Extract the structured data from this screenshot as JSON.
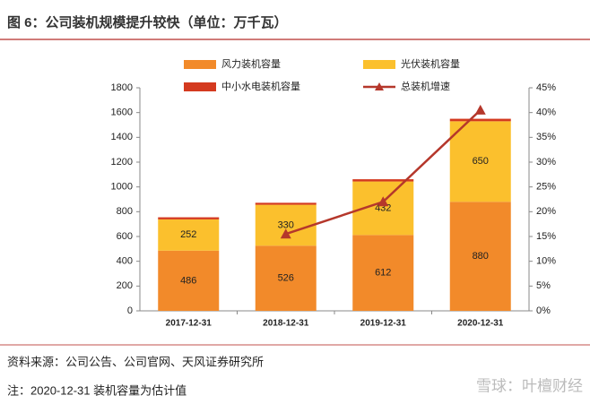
{
  "chart_data": {
    "type": "bar",
    "stacked": true,
    "title": "图 6：公司装机规模提升较快（单位：万千瓦）",
    "categories": [
      "2017-12-31",
      "2018-12-31",
      "2019-12-31",
      "2020-12-31"
    ],
    "series": [
      {
        "name": "风力装机容量",
        "color": "#f28a2a",
        "values": [
          486,
          526,
          612,
          880
        ]
      },
      {
        "name": "光伏装机容量",
        "color": "#fbc02d",
        "values": [
          252,
          330,
          432,
          650
        ]
      },
      {
        "name": "中小水电装机容量",
        "color": "#d43a1f",
        "values": [
          17,
          16,
          18,
          20
        ]
      },
      {
        "name": "总装机增速",
        "color": "#b5372b",
        "type": "line",
        "axis": "y2",
        "values": [
          null,
          15.5,
          22,
          40.5
        ]
      }
    ],
    "data_labels": [
      0,
      1
    ],
    "ylim": [
      0,
      1800
    ],
    "yticks": [
      0,
      200,
      400,
      600,
      800,
      1000,
      1200,
      1400,
      1600,
      1800
    ],
    "y2lim": [
      0,
      45
    ],
    "y2ticks": [
      {
        "value": 0,
        "label": "0%"
      },
      {
        "value": 5,
        "label": "5%"
      },
      {
        "value": 10,
        "label": "10%"
      },
      {
        "value": 15,
        "label": "15%"
      },
      {
        "value": 20,
        "label": "20%"
      },
      {
        "value": 25,
        "label": "25%"
      },
      {
        "value": 30,
        "label": "30%"
      },
      {
        "value": 35,
        "label": "35%"
      },
      {
        "value": 40,
        "label": "40%"
      },
      {
        "value": 45,
        "label": "45%"
      }
    ],
    "source": "资料来源：公司公告、公司官网、天风证券研究所",
    "note": "注：2020-12-31 装机容量为估计值",
    "watermark": "雪球：叶檀财经"
  }
}
